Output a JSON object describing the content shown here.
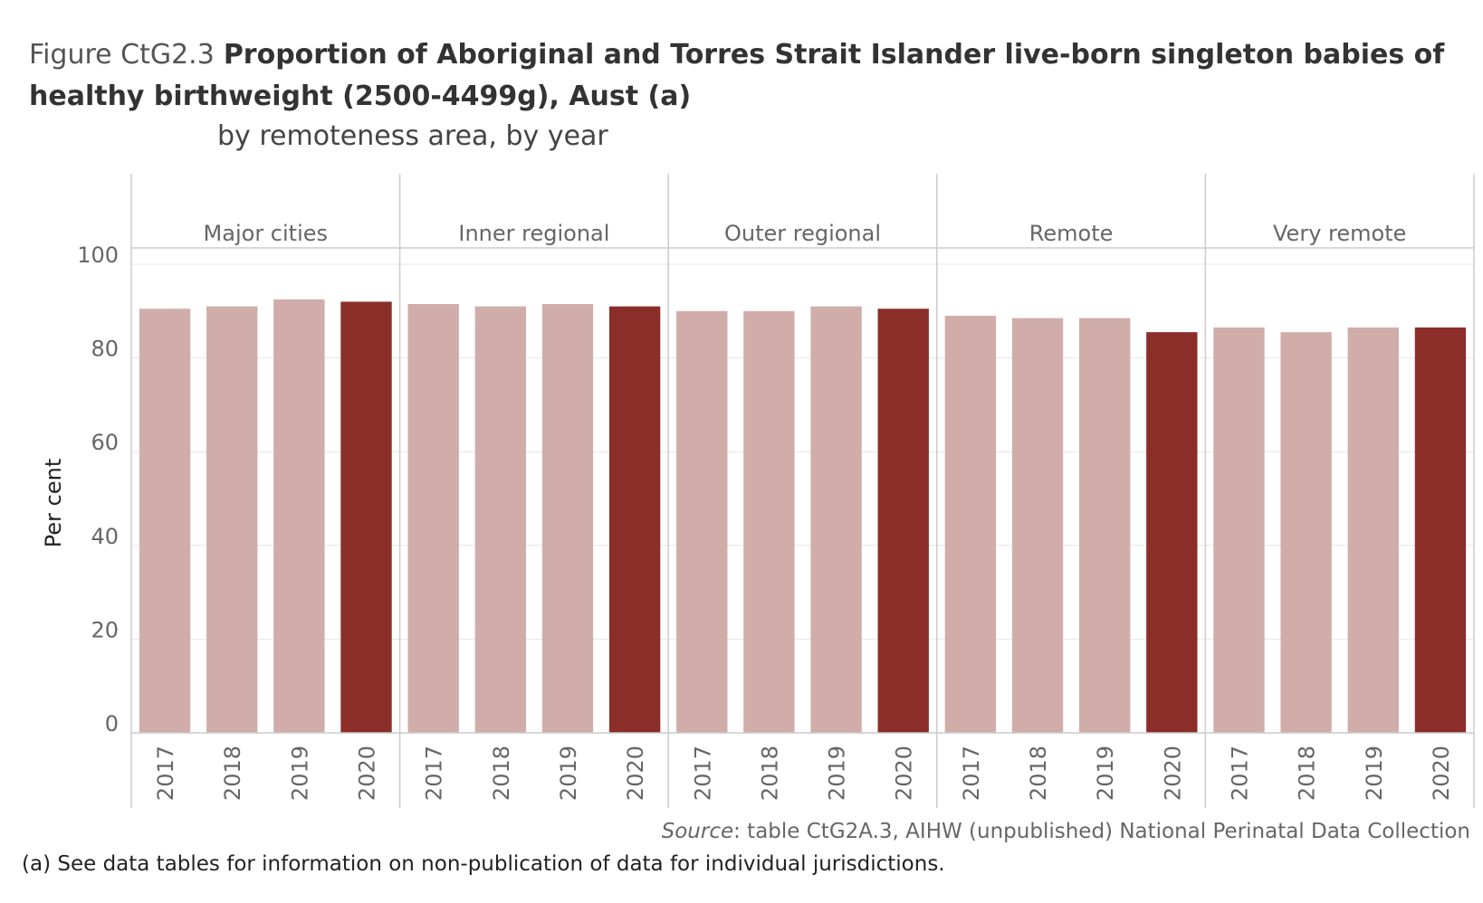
{
  "figure": {
    "label": "Figure CtG2.3",
    "title": "Proportion of Aboriginal and Torres Strait Islander live-born singleton babies of healthy birthweight (2500-4499g), Aust (a)",
    "subtitle": "by remoteness area, by year"
  },
  "footer": {
    "source_label": "Source",
    "source_text": ": table CtG2A.3, AIHW (unpublished) National Perinatal Data Collection",
    "note": "(a) See data tables for information on non-publication of data for individual jurisdictions."
  },
  "colors": {
    "bar_previous": "#d1adaa",
    "bar_latest": "#8b2e2a",
    "grid": "#e6e6e6",
    "divider": "#cccccc",
    "text": "#666666"
  },
  "chart_data": {
    "type": "bar",
    "ylabel": "Per cent",
    "xlabel": "",
    "ylim": [
      0,
      100
    ],
    "yticks": [
      0,
      20,
      40,
      60,
      80,
      100
    ],
    "grid": true,
    "panels": [
      "Major cities",
      "Inner regional",
      "Outer regional",
      "Remote",
      "Very remote"
    ],
    "categories": [
      "2017",
      "2018",
      "2019",
      "2020"
    ],
    "values": [
      [
        90.5,
        91,
        92.5,
        92
      ],
      [
        91.5,
        91,
        91.5,
        91
      ],
      [
        90,
        90,
        91,
        90.5
      ],
      [
        89,
        88.5,
        88.5,
        85.5
      ],
      [
        86.5,
        85.5,
        86.5,
        86.5
      ]
    ],
    "highlight_category": "2020"
  }
}
